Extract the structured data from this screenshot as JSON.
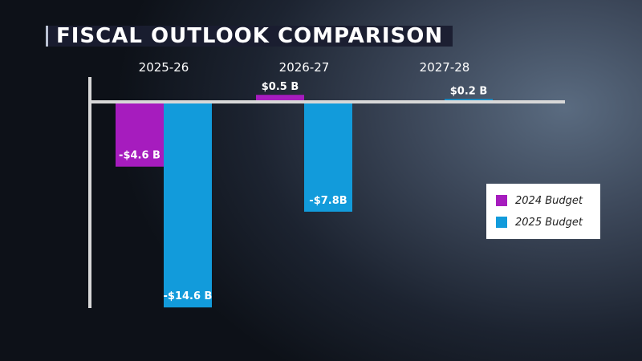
{
  "header": {
    "title": "FISCAL OUTLOOK COMPARISON"
  },
  "colors": {
    "series_2024": "#a61cbe",
    "series_2025": "#129bdb",
    "axis": "#d8d8d8"
  },
  "legend": {
    "items": [
      {
        "label": "2024 Budget"
      },
      {
        "label": "2025 Budget"
      }
    ]
  },
  "chart_data": {
    "type": "bar",
    "title": "FISCAL OUTLOOK COMPARISON",
    "categories": [
      "2025-26",
      "2026-27",
      "2027-28"
    ],
    "series": [
      {
        "name": "2024 Budget",
        "values": [
          -4.6,
          0.5,
          null
        ],
        "labels": [
          "-$4.6 B",
          "$0.5 B",
          ""
        ]
      },
      {
        "name": "2025 Budget",
        "values": [
          -14.6,
          -7.8,
          0.2
        ],
        "labels": [
          "-$14.6 B",
          "-$7.8B",
          "$0.2 B"
        ]
      }
    ],
    "xlabel": "",
    "ylabel": "",
    "ylim": [
      -16.4,
      0.5
    ],
    "legend_position": "right"
  }
}
